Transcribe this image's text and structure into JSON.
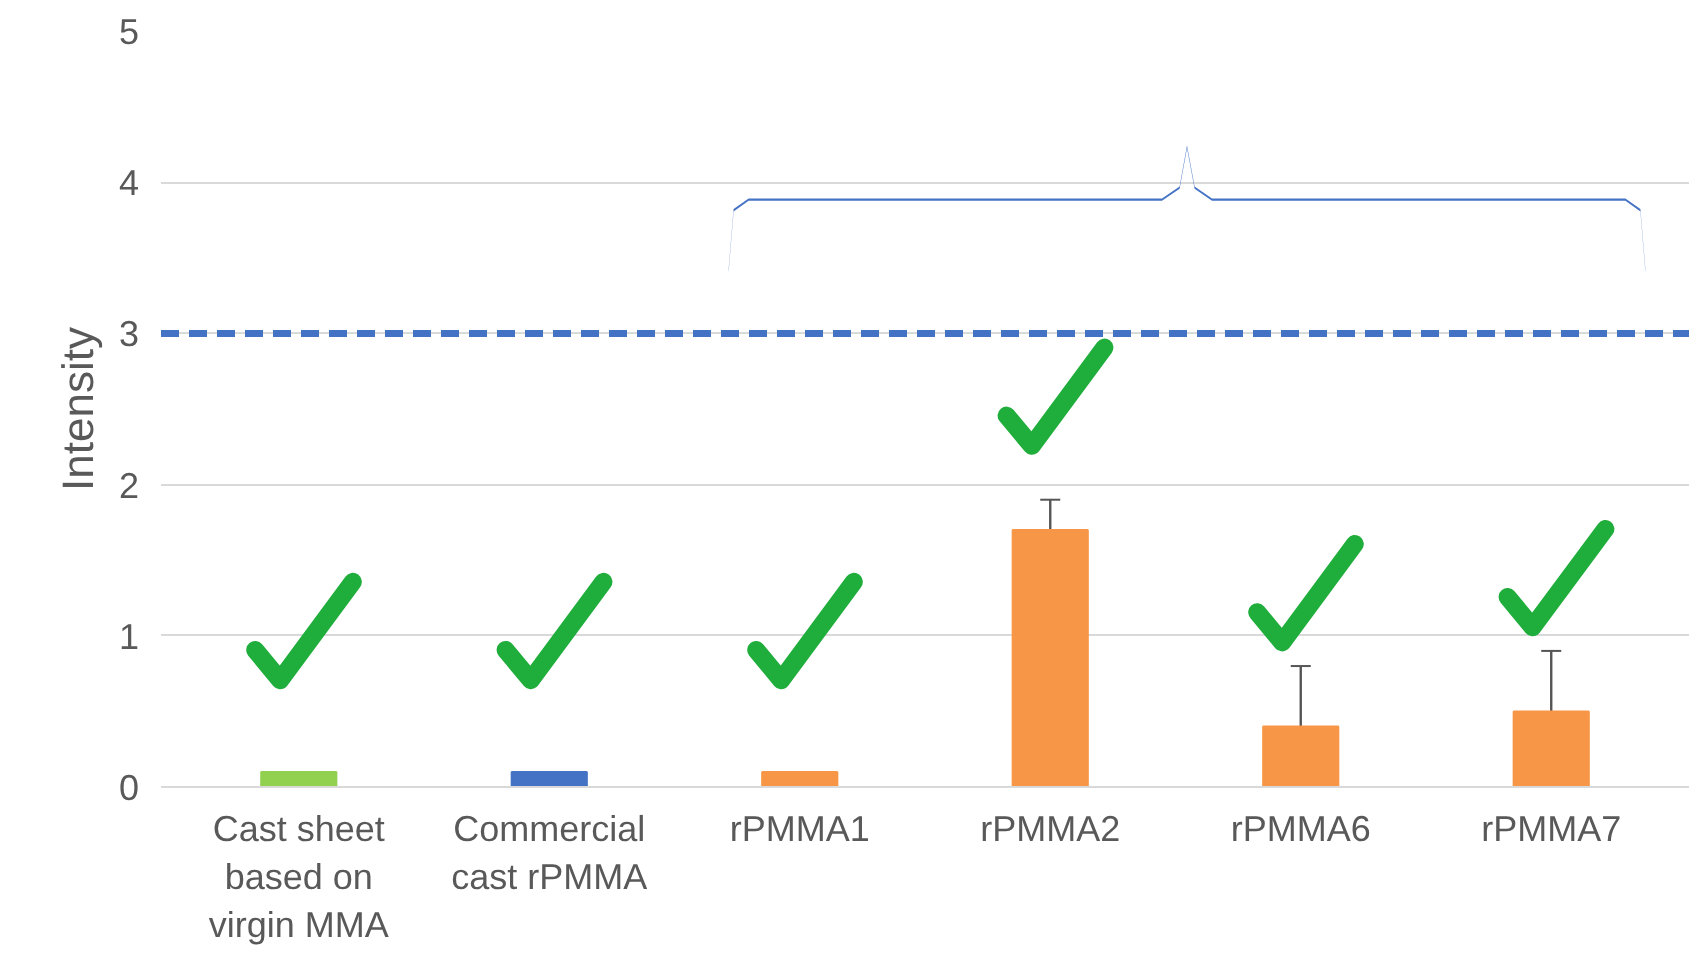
{
  "chart_data": {
    "type": "bar",
    "ylabel": "Intensity",
    "categories": [
      "Cast sheet based on virgin MMA",
      "Commercial cast rPMMA",
      "rPMMA1",
      "rPMMA2",
      "rPMMA6",
      "rPMMA7"
    ],
    "values": [
      0.1,
      0.1,
      0.1,
      1.7,
      0.4,
      0.5
    ],
    "colors": [
      "#92d050",
      "#4472c4",
      "#f79646",
      "#f79646",
      "#f79646",
      "#f79646"
    ],
    "errors": [
      null,
      null,
      null,
      0.2,
      0.4,
      0.4
    ],
    "ylim": [
      0,
      5
    ],
    "yticks": [
      0,
      1,
      2,
      3,
      4,
      5
    ],
    "grid": "y",
    "ref_lines": [
      {
        "axis": "y",
        "value": 3,
        "color": "#4472c4",
        "line_style": "dashed"
      }
    ]
  }
}
